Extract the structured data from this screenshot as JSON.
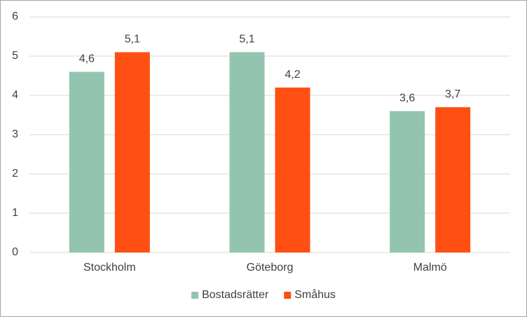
{
  "chart_data": {
    "type": "bar",
    "categories": [
      "Stockholm",
      "Göteborg",
      "Malmö"
    ],
    "series": [
      {
        "name": "Bostadsrätter",
        "color": "#93c4b0",
        "values": [
          4.6,
          5.1,
          3.6
        ],
        "value_labels": [
          "4,6",
          "5,1",
          "3,6"
        ]
      },
      {
        "name": "Småhus",
        "color": "#ff4f12",
        "values": [
          5.1,
          4.2,
          3.7
        ],
        "value_labels": [
          "5,1",
          "4,2",
          "3,7"
        ]
      }
    ],
    "ylim": [
      0,
      6
    ],
    "yticks": [
      0,
      1,
      2,
      3,
      4,
      5,
      6
    ],
    "grid": true,
    "legend": "bottom"
  }
}
